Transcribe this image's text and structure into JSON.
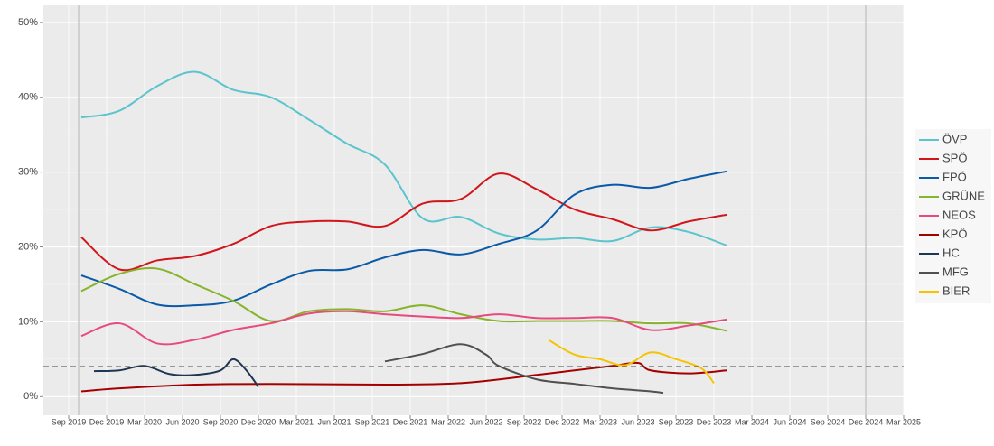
{
  "chart_data": {
    "type": "line",
    "xlim": [
      "2019-07",
      "2025-03"
    ],
    "ylim": [
      -2.5,
      52.4
    ],
    "yticks": [
      {
        "value": 0,
        "label": "0%"
      },
      {
        "value": 10,
        "label": "10%"
      },
      {
        "value": 20,
        "label": "20%"
      },
      {
        "value": 30,
        "label": "30%"
      },
      {
        "value": 40,
        "label": "40%"
      },
      {
        "value": 50,
        "label": "50%"
      }
    ],
    "xticks": [
      {
        "value": "2019-09",
        "label": "Sep 2019"
      },
      {
        "value": "2019-12",
        "label": "Dec 2019"
      },
      {
        "value": "2020-03",
        "label": "Mar 2020"
      },
      {
        "value": "2020-06",
        "label": "Jun 2020"
      },
      {
        "value": "2020-09",
        "label": "Sep 2020"
      },
      {
        "value": "2020-12",
        "label": "Dec 2020"
      },
      {
        "value": "2021-03",
        "label": "Mar 2021"
      },
      {
        "value": "2021-06",
        "label": "Jun 2021"
      },
      {
        "value": "2021-09",
        "label": "Sep 2021"
      },
      {
        "value": "2021-12",
        "label": "Dec 2021"
      },
      {
        "value": "2022-03",
        "label": "Mar 2022"
      },
      {
        "value": "2022-06",
        "label": "Jun 2022"
      },
      {
        "value": "2022-09",
        "label": "Sep 2022"
      },
      {
        "value": "2022-12",
        "label": "Dec 2022"
      },
      {
        "value": "2023-03",
        "label": "Mar 2023"
      },
      {
        "value": "2023-06",
        "label": "Jun 2023"
      },
      {
        "value": "2023-09",
        "label": "Sep 2023"
      },
      {
        "value": "2023-12",
        "label": "Dec 2023"
      },
      {
        "value": "2024-03",
        "label": "Mar 2024"
      },
      {
        "value": "2024-06",
        "label": "Jun 2024"
      },
      {
        "value": "2024-09",
        "label": "Sep 2024"
      },
      {
        "value": "2024-12",
        "label": "Dec 2024"
      },
      {
        "value": "2025-03",
        "label": "Mar 2025"
      }
    ],
    "grid": true,
    "threshold": 4,
    "legend": "right",
    "series": [
      {
        "name": "ÖVP",
        "color": "#5bc4cc",
        "x": [
          "2019-10",
          "2020-01",
          "2020-04",
          "2020-07",
          "2020-10",
          "2021-01",
          "2021-04",
          "2021-07",
          "2021-10",
          "2022-01",
          "2022-04",
          "2022-07",
          "2022-10",
          "2023-01",
          "2023-04",
          "2023-07",
          "2023-10",
          "2024-01"
        ],
        "values": [
          37.3,
          38.2,
          41.5,
          43.4,
          41.0,
          40.0,
          37.0,
          33.8,
          31.0,
          23.8,
          24.0,
          21.8,
          21.0,
          21.2,
          20.8,
          22.6,
          22.0,
          20.2
        ]
      },
      {
        "name": "SPÖ",
        "color": "#d0161b",
        "x": [
          "2019-10",
          "2020-01",
          "2020-04",
          "2020-07",
          "2020-10",
          "2021-01",
          "2021-04",
          "2021-07",
          "2021-10",
          "2022-01",
          "2022-04",
          "2022-07",
          "2022-10",
          "2023-01",
          "2023-04",
          "2023-07",
          "2023-10",
          "2024-01"
        ],
        "values": [
          21.3,
          17.0,
          18.2,
          18.8,
          20.4,
          22.8,
          23.4,
          23.4,
          22.8,
          25.8,
          26.4,
          29.8,
          27.7,
          25.0,
          23.7,
          22.2,
          23.4,
          24.3
        ]
      },
      {
        "name": "FPÖ",
        "color": "#0b5aa8",
        "x": [
          "2019-10",
          "2020-01",
          "2020-04",
          "2020-07",
          "2020-10",
          "2021-01",
          "2021-04",
          "2021-07",
          "2021-10",
          "2022-01",
          "2022-04",
          "2022-07",
          "2022-10",
          "2023-01",
          "2023-04",
          "2023-07",
          "2023-10",
          "2024-01"
        ],
        "values": [
          16.2,
          14.4,
          12.3,
          12.2,
          12.8,
          15.0,
          16.8,
          17.0,
          18.6,
          19.6,
          19.0,
          20.4,
          22.2,
          27.0,
          28.3,
          27.9,
          29.1,
          30.1
        ]
      },
      {
        "name": "GRÜNE",
        "color": "#86b42a",
        "x": [
          "2019-10",
          "2020-01",
          "2020-04",
          "2020-07",
          "2020-10",
          "2021-01",
          "2021-04",
          "2021-07",
          "2021-10",
          "2022-01",
          "2022-04",
          "2022-07",
          "2022-10",
          "2023-01",
          "2023-04",
          "2023-07",
          "2023-10",
          "2024-01"
        ],
        "values": [
          14.1,
          16.4,
          17.1,
          15.0,
          12.8,
          10.1,
          11.4,
          11.7,
          11.4,
          12.2,
          11.0,
          10.1,
          10.1,
          10.1,
          10.1,
          9.8,
          9.8,
          8.8
        ]
      },
      {
        "name": "NEOS",
        "color": "#e84a7e",
        "x": [
          "2019-10",
          "2020-01",
          "2020-04",
          "2020-07",
          "2020-10",
          "2021-01",
          "2021-04",
          "2021-07",
          "2021-10",
          "2022-01",
          "2022-04",
          "2022-07",
          "2022-10",
          "2023-01",
          "2023-04",
          "2023-07",
          "2023-10",
          "2024-01"
        ],
        "values": [
          8.1,
          9.8,
          7.1,
          7.6,
          8.9,
          9.8,
          11.1,
          11.4,
          11.0,
          10.7,
          10.5,
          11.0,
          10.5,
          10.5,
          10.5,
          8.9,
          9.5,
          10.3
        ]
      },
      {
        "name": "KPÖ",
        "color": "#a50000",
        "x": [
          "2019-10",
          "2020-01",
          "2020-07",
          "2021-01",
          "2021-10",
          "2022-04",
          "2022-10",
          "2023-01",
          "2023-04",
          "2023-06",
          "2023-07",
          "2023-10",
          "2024-01"
        ],
        "values": [
          0.7,
          1.1,
          1.6,
          1.7,
          1.6,
          1.8,
          2.9,
          3.5,
          4.1,
          4.5,
          3.5,
          3.1,
          3.5
        ]
      },
      {
        "name": "HC",
        "color": "#1f3552",
        "x": [
          "2019-11",
          "2020-01",
          "2020-03",
          "2020-05",
          "2020-07",
          "2020-09",
          "2020-10",
          "2020-11",
          "2020-12"
        ],
        "values": [
          3.4,
          3.5,
          4.1,
          3.0,
          2.9,
          3.5,
          5.0,
          3.6,
          1.3
        ]
      },
      {
        "name": "MFG",
        "color": "#505050",
        "x": [
          "2021-10",
          "2022-01",
          "2022-04",
          "2022-06",
          "2022-07",
          "2022-10",
          "2023-01",
          "2023-04",
          "2023-07",
          "2023-08"
        ],
        "values": [
          4.7,
          5.7,
          7.0,
          5.6,
          4.1,
          2.3,
          1.7,
          1.1,
          0.7,
          0.5
        ]
      },
      {
        "name": "BIER",
        "color": "#f5c400",
        "x": [
          "2022-11",
          "2023-01",
          "2023-03",
          "2023-05",
          "2023-07",
          "2023-09",
          "2023-11",
          "2023-12"
        ],
        "values": [
          7.5,
          5.6,
          5.0,
          4.2,
          5.9,
          5.0,
          3.8,
          1.8
        ]
      }
    ]
  }
}
